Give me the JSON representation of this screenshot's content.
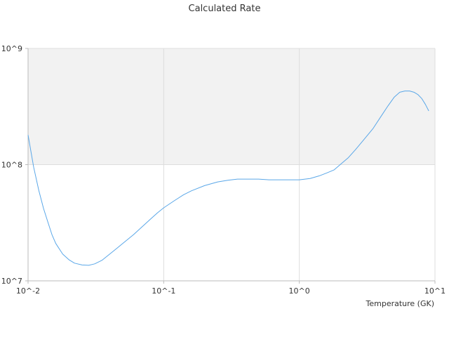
{
  "chart_data": {
    "type": "line",
    "title": "Calculated Rate",
    "xlabel": "Temperature (GK)",
    "ylabel": "",
    "x_scale": "log",
    "y_scale": "log",
    "xlim": [
      0.01,
      10
    ],
    "ylim": [
      10000000,
      1000000000
    ],
    "x_ticks": [
      {
        "value": 0.01,
        "label": "10^-2"
      },
      {
        "value": 0.1,
        "label": "10^-1"
      },
      {
        "value": 1,
        "label": "10^0"
      },
      {
        "value": 10,
        "label": "10^1"
      }
    ],
    "y_ticks": [
      {
        "value": 10000000,
        "label": "10^7"
      },
      {
        "value": 100000000,
        "label": "10^8"
      },
      {
        "value": 1000000000,
        "label": "10^9"
      }
    ],
    "grid": true,
    "shaded_band": {
      "from": 100000000,
      "to": 1000000000,
      "color": "#f2f2f2"
    },
    "colors": {
      "line": "#5aa7e8",
      "grid": "#dddddd",
      "axis": "#bbbbbb",
      "text": "#333333"
    },
    "series": [
      {
        "x": [
          0.01,
          0.011,
          0.012,
          0.013,
          0.014,
          0.015,
          0.016,
          0.018,
          0.02,
          0.022,
          0.025,
          0.028,
          0.031,
          0.035,
          0.04,
          0.045,
          0.05,
          0.06,
          0.07,
          0.08,
          0.09,
          0.1,
          0.12,
          0.14,
          0.16,
          0.2,
          0.25,
          0.3,
          0.35,
          0.4,
          0.5,
          0.6,
          0.7,
          0.8,
          1.0,
          1.2,
          1.4,
          1.6,
          1.8,
          2.0,
          2.3,
          2.6,
          3.0,
          3.5,
          4.0,
          4.5,
          5.0,
          5.5,
          6.0,
          6.5,
          7.0,
          7.5,
          8.0,
          8.5,
          9.0
        ],
        "y": [
          180000000,
          95000000,
          60000000,
          42000000,
          32000000,
          25000000,
          21000000,
          17000000,
          15200000,
          14200000,
          13700000,
          13600000,
          14000000,
          15000000,
          17000000,
          19000000,
          21000000,
          25000000,
          29500000,
          34000000,
          38500000,
          42500000,
          49000000,
          55000000,
          59500000,
          66000000,
          71000000,
          73500000,
          75000000,
          75000000,
          75000000,
          74000000,
          74000000,
          74000000,
          74000000,
          76000000,
          80000000,
          85000000,
          90000000,
          100000000,
          115000000,
          135000000,
          165000000,
          205000000,
          260000000,
          320000000,
          380000000,
          420000000,
          430000000,
          430000000,
          420000000,
          400000000,
          370000000,
          330000000,
          290000000
        ]
      }
    ]
  }
}
